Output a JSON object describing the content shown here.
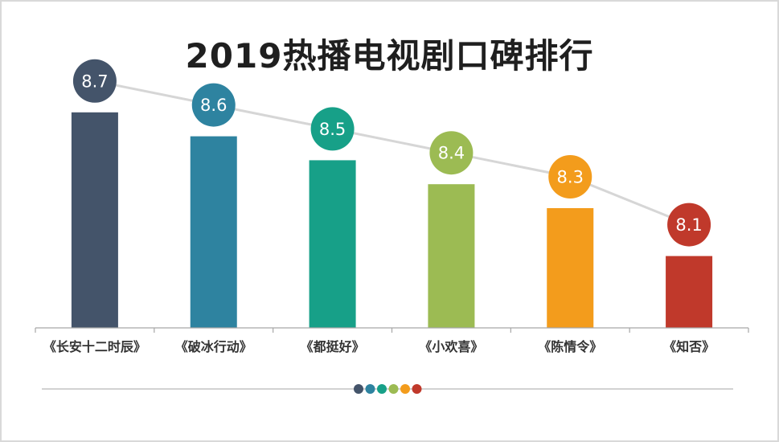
{
  "chart_data": {
    "type": "bar",
    "title": "2019热播电视剧口碑排行",
    "categories": [
      "《长安十二时辰》",
      "《破冰行动》",
      "《都挺好》",
      "《小欢喜》",
      "《陈情令》",
      "《知否》"
    ],
    "values": [
      8.7,
      8.6,
      8.5,
      8.4,
      8.3,
      8.1
    ],
    "value_labels": [
      "8.7",
      "8.6",
      "8.5",
      "8.4",
      "8.3",
      "8.1"
    ],
    "colors": [
      "#44546a",
      "#2e83a0",
      "#17a088",
      "#9cbb53",
      "#f39c1c",
      "#c0392b"
    ],
    "ylim": [
      7.8,
      8.8
    ],
    "trend_line": true,
    "grid": false
  },
  "colors": {
    "trend_line": "#d6d6d6",
    "axis": "#a6a6a6",
    "footer_line": "#a6a6a6"
  }
}
